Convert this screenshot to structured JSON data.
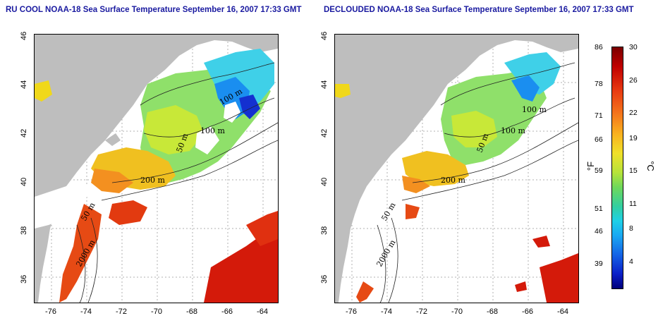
{
  "titles": {
    "left": "RU COOL NOAA-18 Sea Surface Temperature September 16, 2007 17:33 GMT",
    "right": "DECLOUDED NOAA-18 Sea Surface Temperature September 16, 2007 17:33 GMT"
  },
  "x_ticks": [
    "-76",
    "-74",
    "-72",
    "-70",
    "-68",
    "-66",
    "-64"
  ],
  "y_ticks": [
    "36",
    "38",
    "40",
    "42",
    "44",
    "46"
  ],
  "contours": {
    "c1": "100 m",
    "c2": "50 m",
    "c3": "200 m",
    "c4": "2000 m",
    "c5": "50 m",
    "c6": "100 m"
  },
  "colorbar": {
    "fahrenheit_unit": "°F",
    "celsius_unit": "°C",
    "fahrenheit_ticks": [
      "86",
      "78",
      "71",
      "66",
      "59",
      "51",
      "46",
      "39"
    ],
    "celsius_ticks": [
      "30",
      "26",
      "22",
      "19",
      "15",
      "11",
      "8",
      "4"
    ]
  },
  "colors": {
    "title": "#1a1aa0",
    "land": "#bebebe",
    "cloud": "#ffffff"
  }
}
